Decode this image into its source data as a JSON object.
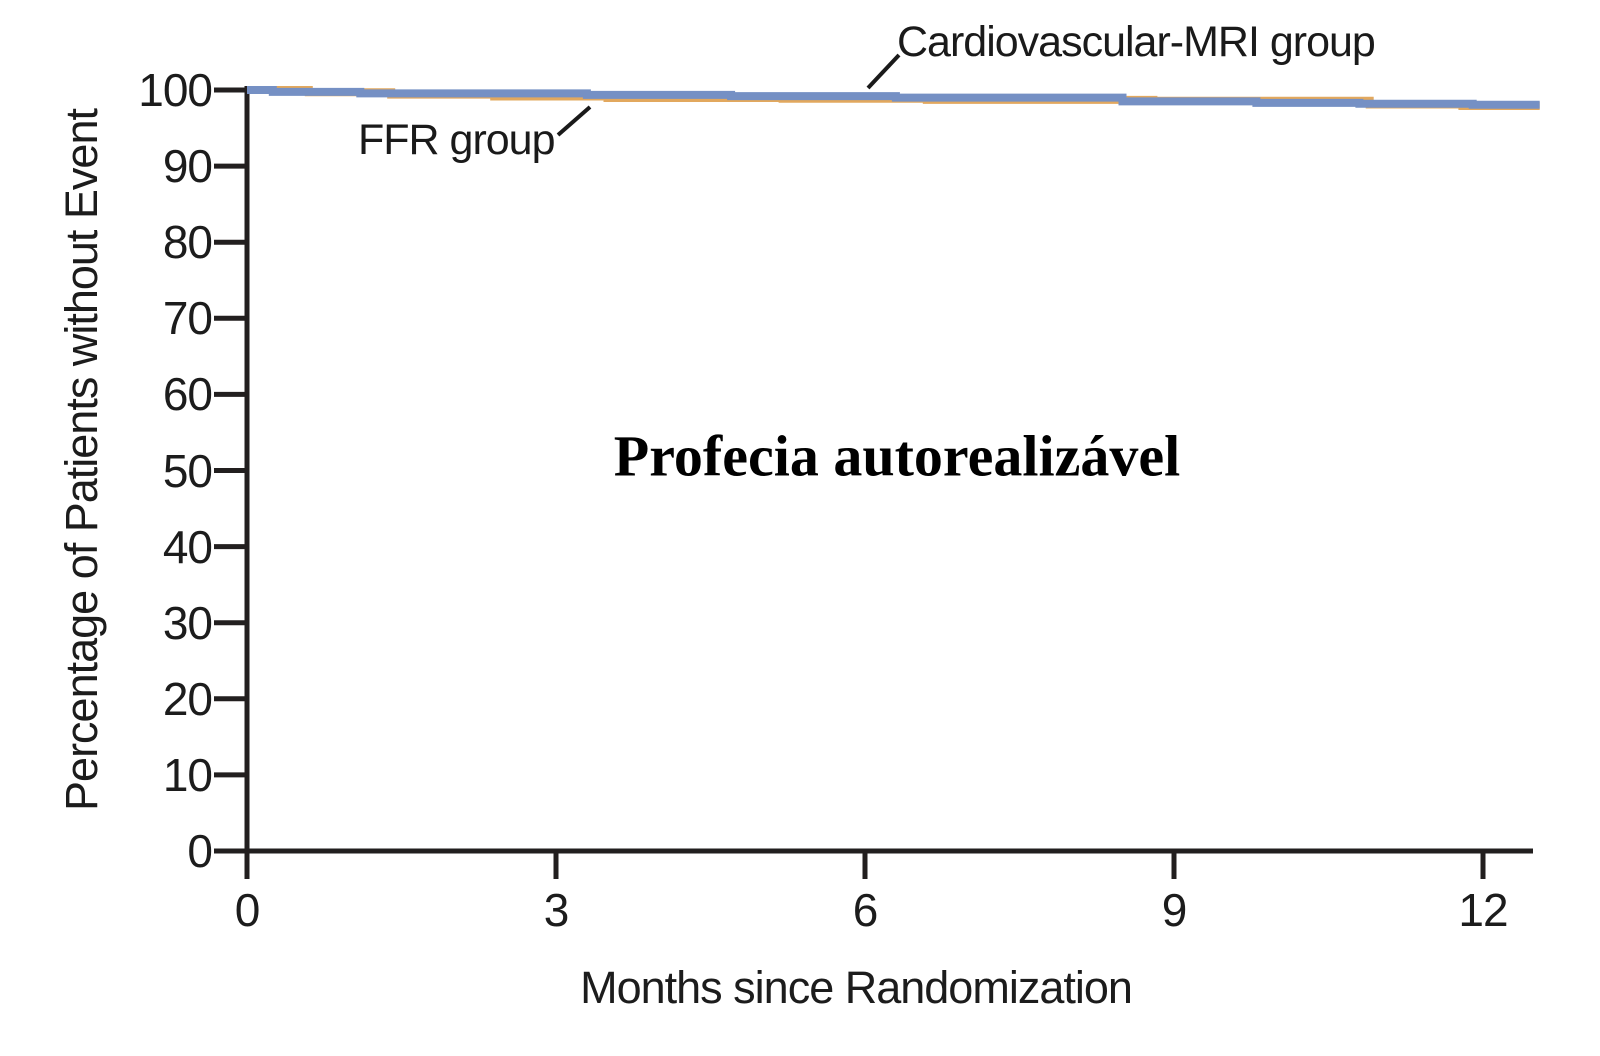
{
  "figure": {
    "y_axis_title": "Percentage of Patients without Event",
    "x_axis_title": "Months since Randomization",
    "annotation": "Profecia autorealizável"
  },
  "labels": {
    "cmr_group": "Cardiovascular-MRI group",
    "ffr_group": "FFR group"
  },
  "colors": {
    "cmr_line": "#7590c4",
    "ffr_line": "#e2a85e",
    "axis": "#221f1f",
    "text": "#1c1c1c",
    "annotation_text": "#000000",
    "background": "#ffffff"
  },
  "chart_data": {
    "type": "line",
    "subtype": "kaplan-meier-step",
    "title": "",
    "xlabel": "Months since Randomization",
    "ylabel": "Percentage of Patients without Event",
    "xlim": [
      0,
      12.5
    ],
    "ylim": [
      0,
      100
    ],
    "x_ticks": [
      0,
      3,
      6,
      9,
      12
    ],
    "y_ticks": [
      0,
      10,
      20,
      30,
      40,
      50,
      60,
      70,
      80,
      90,
      100
    ],
    "grid": false,
    "legend_position": "inline-annotations",
    "annotations": [
      "Cardiovascular-MRI group",
      "FFR group",
      "Profecia autorealizável"
    ],
    "series": [
      {
        "name": "FFR group",
        "color": "#e2a85e",
        "step": true,
        "points": [
          [
            0,
            100
          ],
          [
            0.6,
            99.7
          ],
          [
            1.4,
            99.4
          ],
          [
            2.4,
            99.15
          ],
          [
            3.5,
            98.95
          ],
          [
            5.2,
            98.85
          ],
          [
            6.6,
            98.7
          ],
          [
            8.8,
            98.6
          ],
          [
            10.9,
            98.1
          ],
          [
            11.8,
            97.9
          ],
          [
            12.55,
            97.9
          ]
        ]
      },
      {
        "name": "Cardiovascular-MRI group",
        "color": "#7590c4",
        "step": true,
        "points": [
          [
            0,
            100
          ],
          [
            0.25,
            99.75
          ],
          [
            1.1,
            99.55
          ],
          [
            3.3,
            99.35
          ],
          [
            4.7,
            99.2
          ],
          [
            6.3,
            99.0
          ],
          [
            8.5,
            98.5
          ],
          [
            9.8,
            98.3
          ],
          [
            10.8,
            98.2
          ],
          [
            11.9,
            98.05
          ],
          [
            12.55,
            98.05
          ]
        ]
      }
    ]
  }
}
